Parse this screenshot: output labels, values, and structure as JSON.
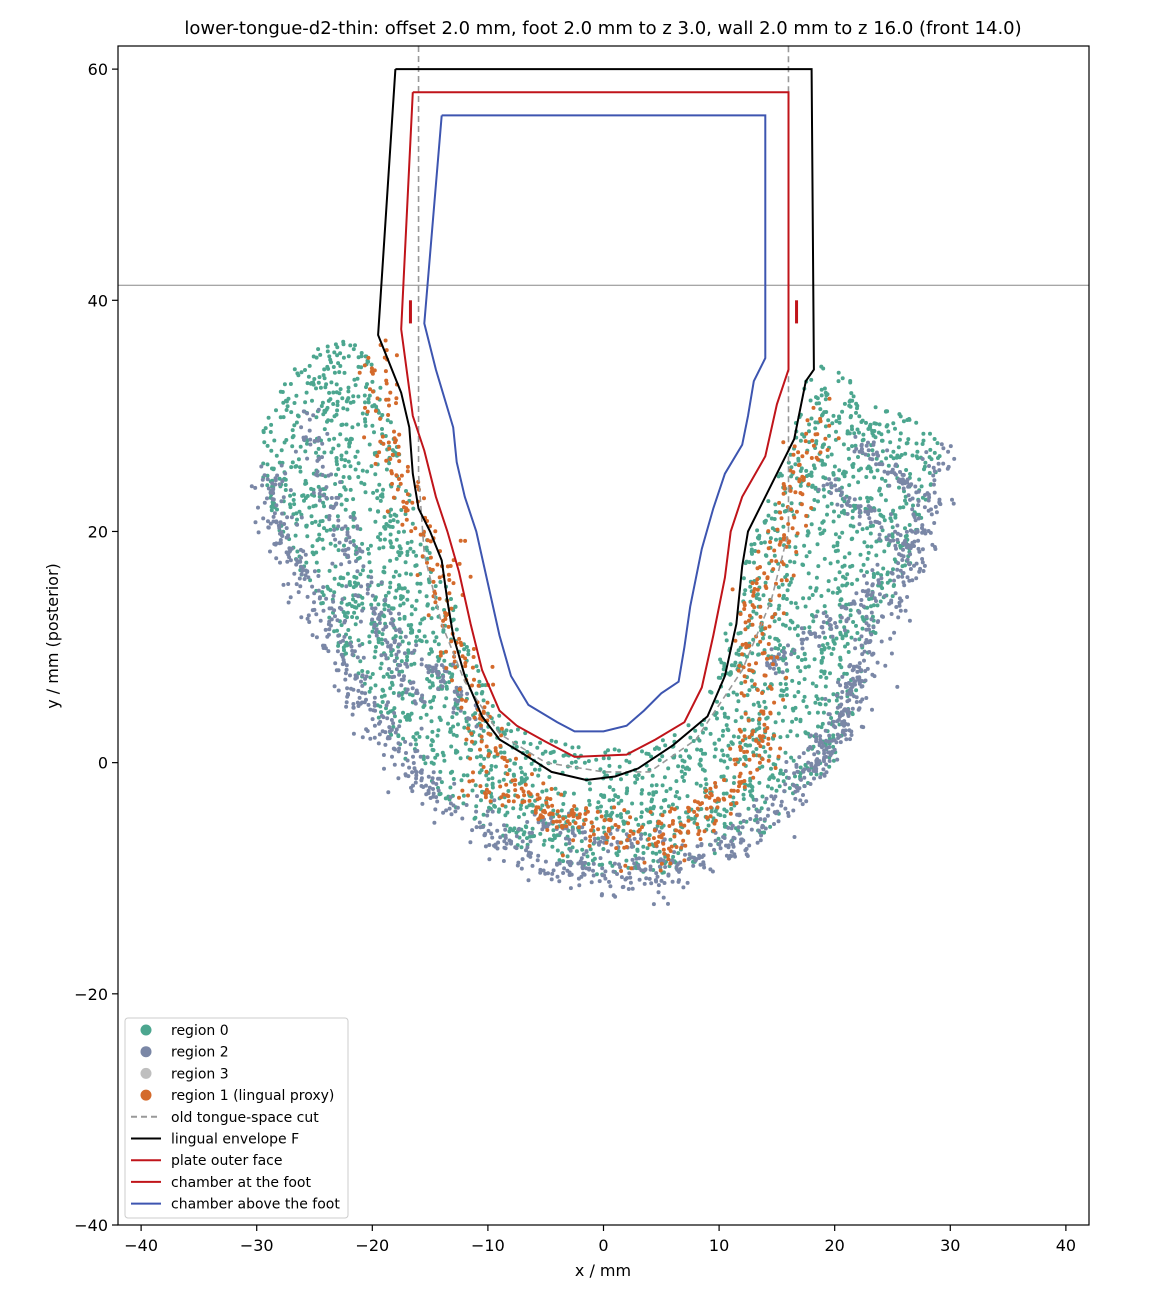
{
  "chart_data": {
    "type": "scatter",
    "title": "lower-tongue-d2-thin: offset 2.0 mm, foot 2.0 mm to z 3.0, wall 2.0 mm to z 16.0 (front 14.0)",
    "xlabel": "x / mm",
    "ylabel": "y / mm (posterior)",
    "xlim": [
      -42,
      42
    ],
    "ylim": [
      -40,
      62
    ],
    "x_ticks": [
      -40,
      -30,
      -20,
      -10,
      0,
      10,
      20,
      30,
      40
    ],
    "y_ticks": [
      -40,
      -20,
      0,
      20,
      40,
      60
    ],
    "x_tick_labels": [
      "−40",
      "−30",
      "−20",
      "−10",
      "0",
      "10",
      "20",
      "30",
      "40"
    ],
    "y_tick_labels": [
      "−40",
      "−20",
      "0",
      "20",
      "40",
      "60"
    ],
    "grid": false,
    "legend_position": "lower-left",
    "horizontal_reference_y": 41.3,
    "colors": {
      "region0": "#4ca68f",
      "region2": "#7a87a6",
      "region3": "#bfbfbf",
      "region1": "#d46a2b",
      "old_cut": "#999999",
      "envelope": "#000000",
      "plate": "#c0141a",
      "chamber_foot": "#c0141a",
      "chamber_above": "#3d55b0",
      "reference": "#888888"
    },
    "legend": [
      {
        "label": "region 0",
        "kind": "marker",
        "color": "#4ca68f"
      },
      {
        "label": "region 2",
        "kind": "marker",
        "color": "#7a87a6"
      },
      {
        "label": "region 3",
        "kind": "marker",
        "color": "#bfbfbf"
      },
      {
        "label": "region 1 (lingual proxy)",
        "kind": "marker",
        "color": "#d46a2b"
      },
      {
        "label": "old tongue-space cut",
        "kind": "dash",
        "color": "#999999"
      },
      {
        "label": "lingual envelope F",
        "kind": "line",
        "color": "#000000"
      },
      {
        "label": "plate outer face",
        "kind": "line",
        "color": "#c0141a"
      },
      {
        "label": "chamber at the foot",
        "kind": "line",
        "color": "#c0141a"
      },
      {
        "label": "chamber above the foot",
        "kind": "line",
        "color": "#3d55b0"
      }
    ],
    "point_clouds": {
      "region0_seed": 11,
      "region0_count": 2600,
      "region2_seed": 23,
      "region2_count": 1500,
      "region1_seed": 37,
      "region1_count": 650
    },
    "outer_boundary": [
      [
        -22,
        37
      ],
      [
        -24,
        36.5
      ],
      [
        -27,
        34
      ],
      [
        -29,
        30
      ],
      [
        -30,
        27
      ],
      [
        -29,
        22
      ],
      [
        -27.5,
        19
      ],
      [
        -26,
        16
      ],
      [
        -24,
        13
      ],
      [
        -23,
        10
      ],
      [
        -21,
        7
      ],
      [
        -19,
        3
      ],
      [
        -17,
        0
      ],
      [
        -14,
        -3
      ],
      [
        -10,
        -6
      ],
      [
        -6,
        -8
      ],
      [
        -2,
        -9.5
      ],
      [
        2,
        -10
      ],
      [
        6,
        -9.5
      ],
      [
        10,
        -8
      ],
      [
        14,
        -6
      ],
      [
        17,
        -3
      ],
      [
        20,
        0
      ],
      [
        21,
        3
      ],
      [
        22.5,
        6
      ],
      [
        23,
        10
      ],
      [
        25,
        14
      ],
      [
        27,
        18
      ],
      [
        27.5,
        21
      ],
      [
        28.5,
        24
      ],
      [
        29.5,
        27
      ],
      [
        28,
        29
      ],
      [
        24,
        31
      ],
      [
        21,
        33.5
      ],
      [
        19,
        34.5
      ],
      [
        17.5,
        33
      ],
      [
        16,
        27
      ],
      [
        14,
        22
      ],
      [
        12,
        17
      ],
      [
        10.5,
        12
      ],
      [
        9.5,
        7
      ],
      [
        8,
        4
      ],
      [
        5,
        2
      ],
      [
        0,
        1
      ],
      [
        -5,
        2
      ],
      [
        -9,
        4
      ],
      [
        -11,
        9
      ],
      [
        -13,
        14
      ],
      [
        -15,
        19
      ],
      [
        -17,
        24
      ],
      [
        -18.5,
        30
      ],
      [
        -20,
        35
      ]
    ],
    "region2_bands": [
      {
        "points": [
          [
            -29,
            25
          ],
          [
            -28,
            20
          ],
          [
            -26,
            16
          ],
          [
            -24,
            13
          ],
          [
            -22.5,
            9
          ],
          [
            -20,
            4
          ],
          [
            -17,
            0
          ],
          [
            -13,
            -4
          ],
          [
            -8,
            -7
          ],
          [
            -3,
            -9.5
          ],
          [
            2,
            -10
          ],
          [
            7,
            -9
          ],
          [
            12,
            -6.5
          ],
          [
            16,
            -3
          ],
          [
            19,
            1
          ],
          [
            21.5,
            5
          ],
          [
            23,
            10
          ],
          [
            25,
            14
          ],
          [
            27,
            18
          ],
          [
            28,
            22
          ],
          [
            29,
            27
          ]
        ],
        "spread": 0.9,
        "count": 900
      },
      {
        "points": [
          [
            -26,
            30
          ],
          [
            -24.5,
            25
          ],
          [
            -22,
            19
          ],
          [
            -20,
            14
          ],
          [
            -18,
            9
          ],
          [
            -16,
            5
          ]
        ],
        "spread": 0.6,
        "count": 150
      },
      {
        "points": [
          [
            -20,
            13
          ],
          [
            -16,
            9
          ],
          [
            -13,
            7
          ],
          [
            -11,
            3
          ]
        ],
        "spread": 0.5,
        "count": 70
      },
      {
        "points": [
          [
            14,
            8
          ],
          [
            18,
            11
          ],
          [
            21,
            13
          ],
          [
            24,
            16
          ]
        ],
        "spread": 0.5,
        "count": 90
      },
      {
        "points": [
          [
            19,
            24
          ],
          [
            22,
            22
          ],
          [
            25,
            20
          ],
          [
            27,
            17
          ]
        ],
        "spread": 0.5,
        "count": 80
      },
      {
        "points": [
          [
            22,
            28
          ],
          [
            25,
            25
          ],
          [
            27,
            23
          ]
        ],
        "spread": 0.5,
        "count": 60
      },
      {
        "points": [
          [
            -6,
            -5
          ],
          [
            -2,
            -6
          ],
          [
            2,
            -7
          ],
          [
            5,
            -6.5
          ]
        ],
        "spread": 0.5,
        "count": 70
      },
      {
        "points": [
          [
            22,
            8
          ],
          [
            21,
            4
          ],
          [
            19,
            0
          ],
          [
            17,
            -2
          ]
        ],
        "spread": 0.5,
        "count": 80
      }
    ],
    "region1_bands": [
      {
        "points": [
          [
            -20,
            36
          ],
          [
            -19,
            31
          ],
          [
            -18.7,
            27
          ],
          [
            -17,
            22
          ],
          [
            -14.5,
            18.5
          ],
          [
            -14,
            15
          ],
          [
            -13,
            11
          ],
          [
            -12,
            8
          ],
          [
            -11,
            5.5
          ],
          [
            -10,
            2
          ],
          [
            -8,
            -1
          ],
          [
            -5,
            -4
          ],
          [
            -1,
            -6
          ],
          [
            3,
            -7.5
          ],
          [
            6,
            -7
          ],
          [
            9,
            -5
          ],
          [
            11,
            -3
          ],
          [
            13,
            0
          ],
          [
            14,
            3
          ],
          [
            13.5,
            7
          ],
          [
            13,
            12
          ],
          [
            14,
            16
          ],
          [
            15.5,
            20
          ],
          [
            17,
            24
          ],
          [
            19,
            30
          ]
        ],
        "spread": 1.0,
        "count": 560
      },
      {
        "points": [
          [
            -12,
            -2
          ],
          [
            -8,
            -3
          ],
          [
            -4,
            -4.5
          ],
          [
            0,
            -5
          ],
          [
            4,
            -5.5
          ],
          [
            8,
            -4
          ],
          [
            11,
            -2
          ]
        ],
        "spread": 0.6,
        "count": 90
      }
    ],
    "envelope_F": [
      [
        -18,
        60
      ],
      [
        18,
        60
      ],
      [
        18.2,
        34
      ],
      [
        17.5,
        33
      ],
      [
        16.5,
        28
      ],
      [
        14.5,
        24
      ],
      [
        12.5,
        20
      ],
      [
        12,
        17
      ],
      [
        11.5,
        12
      ],
      [
        10.5,
        7.5
      ],
      [
        9,
        4
      ],
      [
        6,
        1.5
      ],
      [
        3,
        -0.5
      ],
      [
        1,
        -1.2
      ],
      [
        -1.5,
        -1.5
      ],
      [
        -4.5,
        -0.8
      ],
      [
        -7,
        0.8
      ],
      [
        -9,
        2
      ],
      [
        -10.5,
        4
      ],
      [
        -12,
        7.5
      ],
      [
        -13,
        11
      ],
      [
        -13.5,
        14
      ],
      [
        -14,
        17.5
      ],
      [
        -15,
        20
      ],
      [
        -16,
        22
      ],
      [
        -16.5,
        25
      ],
      [
        -16.8,
        29
      ],
      [
        -17.5,
        32
      ],
      [
        -19.5,
        37
      ],
      [
        -18,
        60
      ]
    ],
    "plate_outer_face": [
      [
        -16.5,
        58
      ],
      [
        16,
        58
      ],
      [
        16,
        34
      ],
      [
        15,
        31
      ],
      [
        14,
        26.5
      ],
      [
        12,
        23
      ],
      [
        11,
        20
      ],
      [
        10.5,
        16
      ],
      [
        9.5,
        11
      ],
      [
        8.5,
        6.5
      ],
      [
        7,
        3.5
      ],
      [
        4.5,
        2
      ],
      [
        2,
        0.7
      ],
      [
        -2.5,
        0.5
      ],
      [
        -5,
        1.8
      ],
      [
        -7.5,
        3.2
      ],
      [
        -9,
        4.5
      ],
      [
        -10.5,
        8
      ],
      [
        -11.5,
        12
      ],
      [
        -12.5,
        16.5
      ],
      [
        -13.5,
        20
      ],
      [
        -14.5,
        23
      ],
      [
        -15.5,
        27
      ],
      [
        -16.5,
        30
      ],
      [
        -17.5,
        37.5
      ],
      [
        -16.5,
        58
      ]
    ],
    "chamber_above_foot": [
      [
        -14,
        56
      ],
      [
        14,
        56
      ],
      [
        14,
        35
      ],
      [
        13,
        33
      ],
      [
        12.5,
        30
      ],
      [
        12,
        27.5
      ],
      [
        10.5,
        25
      ],
      [
        9.5,
        22
      ],
      [
        8.5,
        18.5
      ],
      [
        7.5,
        13.5
      ],
      [
        7,
        10
      ],
      [
        6.5,
        7
      ],
      [
        5,
        6
      ],
      [
        3.5,
        4.5
      ],
      [
        2,
        3.2
      ],
      [
        0,
        2.7
      ],
      [
        -2.5,
        2.7
      ],
      [
        -4,
        3.5
      ],
      [
        -6.5,
        5
      ],
      [
        -8,
        7.5
      ],
      [
        -9,
        11
      ],
      [
        -10,
        15.5
      ],
      [
        -11,
        20
      ],
      [
        -12,
        23
      ],
      [
        -12.7,
        26
      ],
      [
        -13,
        29
      ],
      [
        -14.5,
        34
      ],
      [
        -15.5,
        38
      ],
      [
        -14,
        56
      ]
    ],
    "chamber_foot_markers": [
      [
        -16.7,
        39
      ],
      [
        16.7,
        39
      ]
    ],
    "old_tongue_space_cut": {
      "left_x": -16,
      "right_x": 16,
      "top_y": 62,
      "bottom_y": 25,
      "curve": [
        [
          -16,
          25
        ],
        [
          -15.5,
          18
        ],
        [
          -14,
          12
        ],
        [
          -12,
          7
        ],
        [
          -9,
          2.5
        ],
        [
          -5,
          0
        ],
        [
          0,
          -0.8
        ],
        [
          4,
          -0.8
        ],
        [
          8,
          2
        ],
        [
          12,
          8
        ],
        [
          14.5,
          14
        ],
        [
          16,
          20
        ]
      ]
    }
  }
}
